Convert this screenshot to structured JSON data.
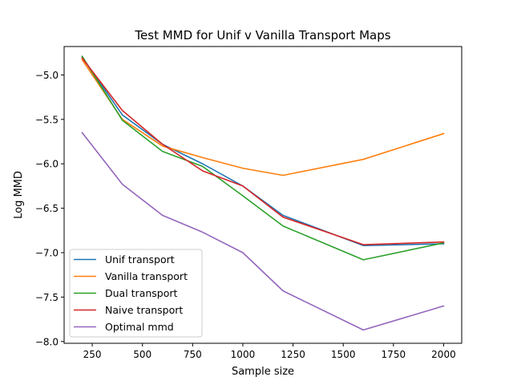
{
  "chart_data": {
    "type": "line",
    "title": "Test MMD for Unif v Vanilla Transport Maps",
    "xlabel": "Sample size",
    "ylabel": "Log MMD",
    "xlim": [
      110,
      2090
    ],
    "ylim": [
      -8.02,
      -4.68
    ],
    "xticks": [
      250,
      500,
      750,
      1000,
      1250,
      1500,
      1750,
      2000
    ],
    "xtick_labels": [
      "250",
      "500",
      "750",
      "1000",
      "1250",
      "1500",
      "1750",
      "2000"
    ],
    "yticks": [
      -5.0,
      -5.5,
      -6.0,
      -6.5,
      -7.0,
      -7.5,
      -8.0
    ],
    "ytick_labels": [
      "−5.0",
      "−5.5",
      "−6.0",
      "−6.5",
      "−7.0",
      "−7.5",
      "−8.0"
    ],
    "grid": false,
    "legend_position": "lower-left",
    "x": [
      200,
      400,
      600,
      800,
      1000,
      1200,
      1600,
      2000
    ],
    "series": [
      {
        "name": "Unif transport",
        "color": "#1f77b4",
        "values": [
          -4.8,
          -5.45,
          -5.78,
          -6.0,
          -6.25,
          -6.58,
          -6.92,
          -6.9
        ]
      },
      {
        "name": "Vanilla transport",
        "color": "#ff7f0e",
        "values": [
          -4.83,
          -5.5,
          -5.8,
          -5.93,
          -6.05,
          -6.13,
          -5.95,
          -5.66
        ]
      },
      {
        "name": "Dual transport",
        "color": "#2ca02c",
        "values": [
          -4.79,
          -5.51,
          -5.86,
          -6.03,
          -6.36,
          -6.7,
          -7.08,
          -6.89
        ]
      },
      {
        "name": "Naive transport",
        "color": "#d62728",
        "values": [
          -4.81,
          -5.4,
          -5.78,
          -6.08,
          -6.25,
          -6.6,
          -6.91,
          -6.88
        ]
      },
      {
        "name": "Optimal mmd",
        "color": "#9467bd",
        "values": [
          -5.65,
          -6.23,
          -6.58,
          -6.77,
          -7.0,
          -7.43,
          -7.87,
          -7.6
        ]
      }
    ]
  }
}
